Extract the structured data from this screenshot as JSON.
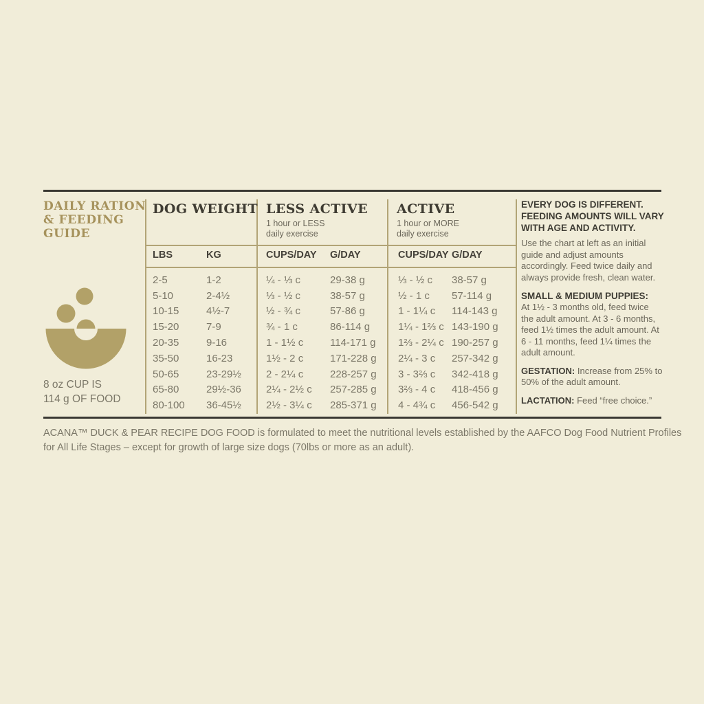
{
  "colors": {
    "background": "#f1edd9",
    "rule_dark": "#3a3933",
    "line_gold": "#b2a476",
    "title_gold": "#a6925c",
    "text_dark": "#3f3c33",
    "text_gray": "#7b7768",
    "icon_tan": "#b2a168"
  },
  "left": {
    "title_lines": [
      "DAILY RATION",
      "& FEEDING",
      "GUIDE"
    ],
    "icon": "kibble-bowl-icon",
    "cup_lines": [
      "8 oz CUP IS",
      "114 g OF FOOD"
    ]
  },
  "table": {
    "groups": [
      {
        "title": "DOG WEIGHT",
        "sub1": "",
        "sub2": ""
      },
      {
        "title": "LESS ACTIVE",
        "sub1": "1 hour or LESS",
        "sub2": "daily exercise"
      },
      {
        "title": "ACTIVE",
        "sub1": "1 hour or MORE",
        "sub2": "daily exercise"
      }
    ],
    "columns": [
      "LBS",
      "KG",
      "CUPS/DAY",
      "G/DAY",
      "CUPS/DAY",
      "G/DAY"
    ],
    "rows": [
      [
        "2-5",
        "1-2",
        "¼ - ⅓ c",
        "29-38 g",
        "⅓ - ½ c",
        "38-57 g"
      ],
      [
        "5-10",
        "2-4½",
        "⅓ - ½ c",
        "38-57 g",
        "½ - 1 c",
        "57-114 g"
      ],
      [
        "10-15",
        "4½-7",
        "½ - ¾ c",
        "57-86 g",
        "1 - 1¼ c",
        "114-143 g"
      ],
      [
        "15-20",
        "7-9",
        "¾ - 1 c",
        "86-114 g",
        "1¼ - 1⅔ c",
        "143-190 g"
      ],
      [
        "20-35",
        "9-16",
        "1 - 1½ c",
        "114-171 g",
        "1⅔ - 2¼ c",
        "190-257 g"
      ],
      [
        "35-50",
        "16-23",
        "1½ - 2 c",
        "171-228 g",
        "2¼ - 3 c",
        "257-342 g"
      ],
      [
        "50-65",
        "23-29½",
        "2 - 2¼ c",
        "228-257 g",
        "3 - 3⅔ c",
        "342-418 g"
      ],
      [
        "65-80",
        "29½-36",
        "2¼ - 2½ c",
        "257-285 g",
        "3⅔ - 4 c",
        "418-456 g"
      ],
      [
        "80-100",
        "36-45½",
        "2½ - 3¼ c",
        "285-371 g",
        "4 - 4¾ c",
        "456-542 g"
      ]
    ]
  },
  "sidebar": {
    "heading_lines": [
      "EVERY DOG IS DIFFERENT.",
      "FEEDING AMOUNTS WILL VARY",
      "WITH AGE AND ACTIVITY."
    ],
    "intro": "Use the chart at left as an initial guide and adjust amounts accordingly. Feed twice daily and always provide fresh, clean water.",
    "puppies_label": "SMALL & MEDIUM PUPPIES:",
    "puppies": "At 1½ - 3 months old, feed twice the adult amount. At 3 - 6 months, feed 1½ times the adult amount. At 6 - 11 months, feed 1¼ times the adult amount.",
    "gestation_label": "GESTATION:",
    "gestation": " Increase from 25% to 50% of the adult amount.",
    "lactation_label": "LACTATION:",
    "lactation": " Feed “free choice.”"
  },
  "footer": {
    "line1": "ACANA™ DUCK & PEAR RECIPE DOG FOOD is formulated to meet the nutritional levels established by the AAFCO Dog Food Nutrient Profiles",
    "line2": "for All Life Stages – except for growth of large size dogs (70lbs or more as an adult)."
  }
}
